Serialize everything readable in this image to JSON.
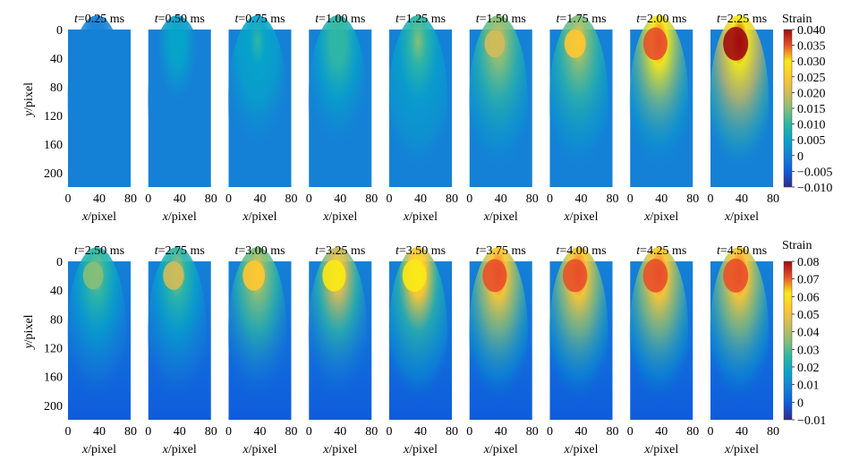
{
  "chart_data": [
    {
      "type": "heatmap",
      "row": "top",
      "panels": [
        {
          "title_var": "t",
          "title_rest": "=0.25 ms",
          "peak": 0.002
        },
        {
          "title_var": "t",
          "title_rest": "=0.50 ms",
          "peak": 0.004
        },
        {
          "title_var": "t",
          "title_rest": "=0.75 ms",
          "peak": 0.008
        },
        {
          "title_var": "t",
          "title_rest": "=1.00 ms",
          "peak": 0.011
        },
        {
          "title_var": "t",
          "title_rest": "=1.25 ms",
          "peak": 0.014
        },
        {
          "title_var": "t",
          "title_rest": "=1.50 ms",
          "peak": 0.019
        },
        {
          "title_var": "t",
          "title_rest": "=1.75 ms",
          "peak": 0.023
        },
        {
          "title_var": "t",
          "title_rest": "=2.00 ms",
          "peak": 0.037
        },
        {
          "title_var": "t",
          "title_rest": "=2.25 ms",
          "peak": 0.041
        }
      ],
      "x_axis": {
        "label_var": "x",
        "label_rest": "/pixel",
        "ticks": [
          "0",
          "40",
          "80"
        ],
        "range": [
          0,
          80
        ]
      },
      "y_axis": {
        "label_var": "y",
        "label_rest": "/pixel",
        "ticks": [
          "0",
          "40",
          "80",
          "120",
          "160",
          "200"
        ],
        "range": [
          0,
          220
        ]
      },
      "colorbar": {
        "title": "Strain",
        "ticks": [
          "0.040",
          "0.035",
          "0.030",
          "0.025",
          "0.020",
          "0.015",
          "0.010",
          "0.005",
          "0",
          "−0.005",
          "−0.010"
        ],
        "range": [
          -0.01,
          0.04
        ]
      }
    },
    {
      "type": "heatmap",
      "row": "bottom",
      "panels": [
        {
          "title_var": "t",
          "title_rest": "=2.50 ms",
          "peak": 0.035
        },
        {
          "title_var": "t",
          "title_rest": "=2.75 ms",
          "peak": 0.04
        },
        {
          "title_var": "t",
          "title_rest": "=3.00 ms",
          "peak": 0.05
        },
        {
          "title_var": "t",
          "title_rest": "=3.25 ms",
          "peak": 0.06
        },
        {
          "title_var": "t",
          "title_rest": "=3.50 ms",
          "peak": 0.066
        },
        {
          "title_var": "t",
          "title_rest": "=3.75 ms",
          "peak": 0.068
        },
        {
          "title_var": "t",
          "title_rest": "=4.00 ms",
          "peak": 0.07
        },
        {
          "title_var": "t",
          "title_rest": "=4.25 ms",
          "peak": 0.072
        },
        {
          "title_var": "t",
          "title_rest": "=4.50 ms",
          "peak": 0.074
        }
      ],
      "x_axis": {
        "label_var": "x",
        "label_rest": "/pixel",
        "ticks": [
          "0",
          "40",
          "80"
        ],
        "range": [
          0,
          80
        ]
      },
      "y_axis": {
        "label_var": "y",
        "label_rest": "/pixel",
        "ticks": [
          "0",
          "40",
          "80",
          "120",
          "160",
          "200"
        ],
        "range": [
          0,
          220
        ]
      },
      "colorbar": {
        "title": "Strain",
        "ticks": [
          "0.08",
          "0.07",
          "0.06",
          "0.05",
          "0.04",
          "0.03",
          "0.02",
          "0.01",
          "0",
          "−0.01"
        ],
        "range": [
          -0.01,
          0.08
        ]
      }
    }
  ],
  "colormap": [
    "#352a87",
    "#0f5cdd",
    "#1481d6",
    "#06a4ca",
    "#2eb7a4",
    "#87bf77",
    "#d1bb59",
    "#fec832",
    "#f9e917",
    "#e8502a",
    "#a10a10"
  ]
}
